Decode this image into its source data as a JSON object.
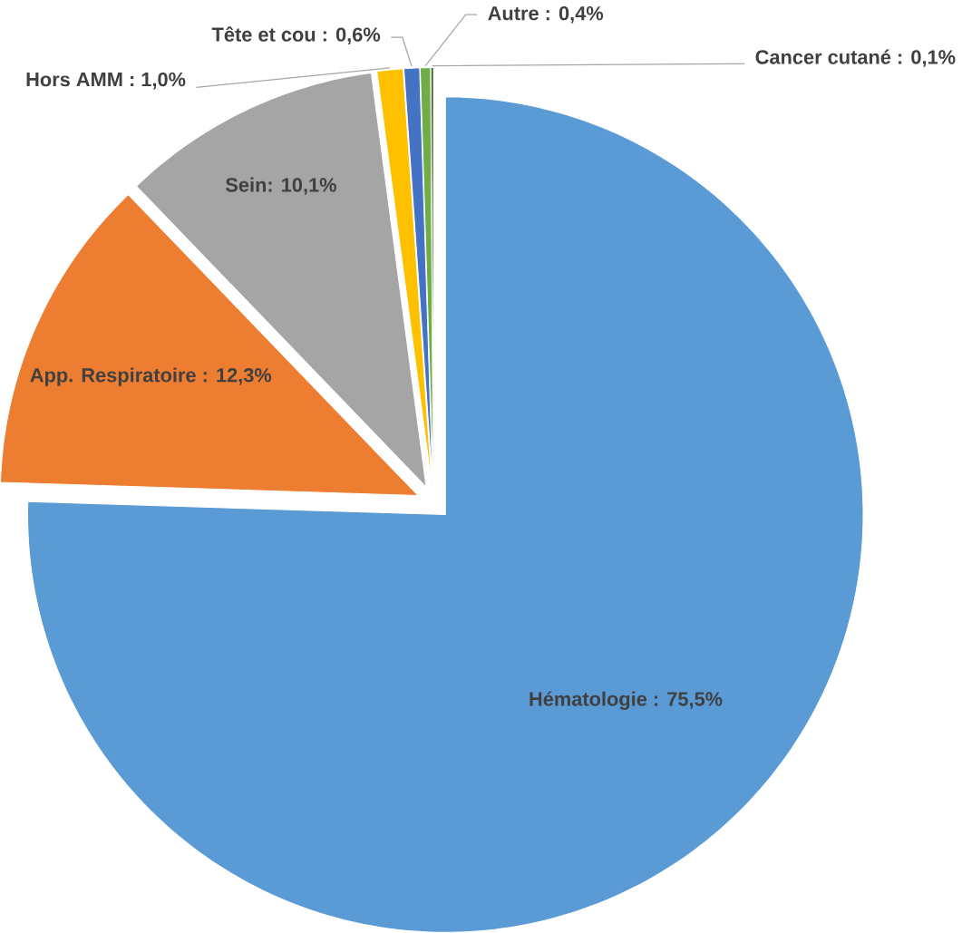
{
  "chart_data": {
    "type": "pie",
    "categories": [
      "Hématologie : 75,5%",
      "App. Respiratoire : 12,3%",
      "Sein: 10,1%",
      "Hors AMM : 1,0%",
      "Tête et cou : 0,6%",
      "Autre : 0,4%",
      "Cancer cutané : 0,1%"
    ],
    "values": [
      75.5,
      12.3,
      10.1,
      1.0,
      0.6,
      0.4,
      0.1
    ],
    "colors": [
      "#5b9bd5",
      "#ed7d31",
      "#a5a5a5",
      "#ffc000",
      "#4472c4",
      "#70ad47",
      "#375623"
    ]
  }
}
